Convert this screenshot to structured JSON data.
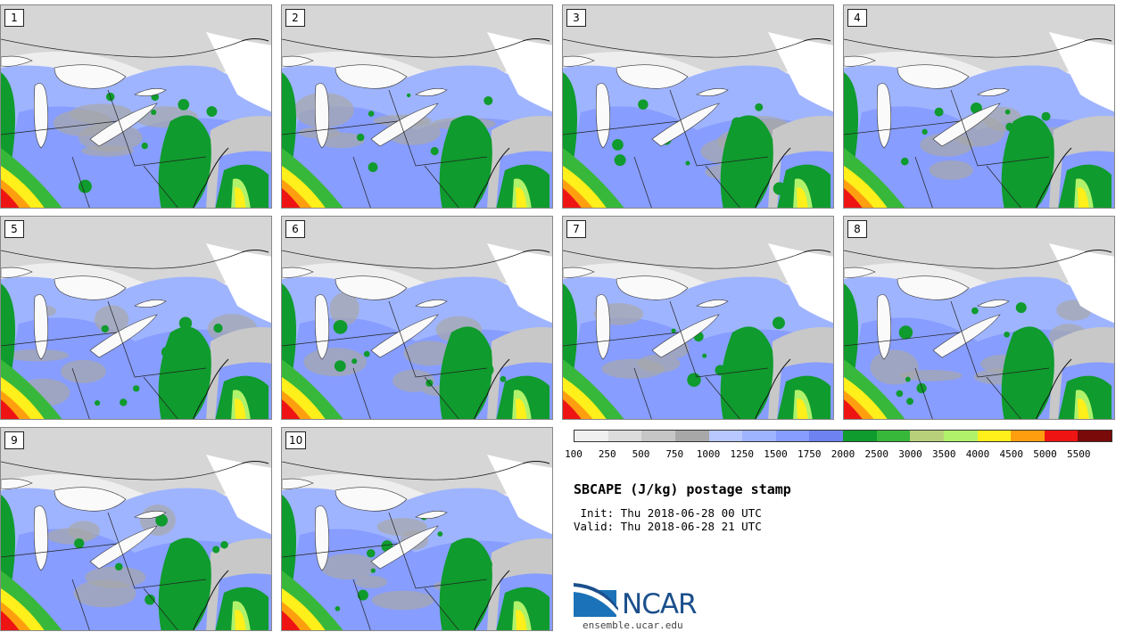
{
  "title": "SBCAPE (J/kg) postage stamp",
  "init": " Init: Thu 2018-06-28 00 UTC",
  "valid": "Valid: Thu 2018-06-28 21 UTC",
  "members": [
    "1",
    "2",
    "3",
    "4",
    "5",
    "6",
    "7",
    "8",
    "9",
    "10"
  ],
  "colorbar": {
    "labels": [
      "100",
      "250",
      "500",
      "750",
      "1000",
      "1250",
      "1500",
      "1750",
      "2000",
      "2500",
      "3000",
      "3500",
      "4000",
      "4500",
      "5000",
      "5500"
    ],
    "colors": [
      "#f0f0f0",
      "#dcdcdc",
      "#c6c6c6",
      "#a8a8a8",
      "#b9c8ff",
      "#9fb4ff",
      "#879dff",
      "#6f82f2",
      "#0f9b2d",
      "#38b83a",
      "#b8d07a",
      "#b0f26a",
      "#ffef1a",
      "#ff9f0f",
      "#ee1414",
      "#7a0a0a"
    ]
  },
  "logo": {
    "name": "NCAR",
    "url": "ensemble.ucar.edu"
  }
}
